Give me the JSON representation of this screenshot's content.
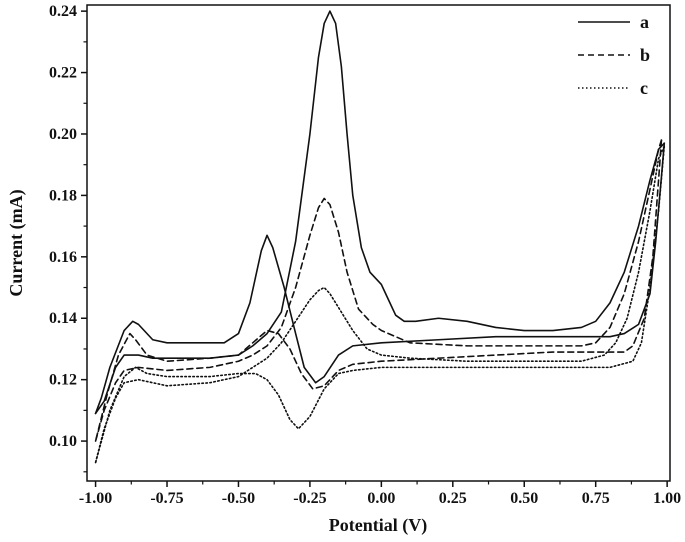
{
  "chart_data": {
    "type": "line",
    "title": "",
    "xlabel": "Potential (V)",
    "ylabel": "Current (mA)",
    "xlim": [
      -1.03,
      1.01
    ],
    "ylim": [
      0.087,
      0.242
    ],
    "x_ticks": [
      -1.0,
      -0.75,
      -0.5,
      -0.25,
      0.0,
      0.25,
      0.5,
      0.75,
      1.0
    ],
    "x_tick_labels": [
      "-1.00",
      "-0.75",
      "-0.50",
      "-0.25",
      "0.00",
      "0.25",
      "0.50",
      "0.75",
      "1.00"
    ],
    "y_ticks": [
      0.1,
      0.12,
      0.14,
      0.16,
      0.18,
      0.2,
      0.22,
      0.24
    ],
    "y_tick_labels": [
      "0.10",
      "0.12",
      "0.14",
      "0.16",
      "0.18",
      "0.20",
      "0.22",
      "0.24"
    ],
    "grid": false,
    "legend": "top-right",
    "series": [
      {
        "name": "a",
        "line_style": "solid",
        "color": "#111111",
        "forward": [
          [
            -1.0,
            0.109
          ],
          [
            -0.97,
            0.113
          ],
          [
            -0.93,
            0.124
          ],
          [
            -0.9,
            0.128
          ],
          [
            -0.85,
            0.128
          ],
          [
            -0.8,
            0.127
          ],
          [
            -0.7,
            0.127
          ],
          [
            -0.6,
            0.127
          ],
          [
            -0.5,
            0.128
          ],
          [
            -0.45,
            0.131
          ],
          [
            -0.4,
            0.135
          ],
          [
            -0.35,
            0.142
          ],
          [
            -0.3,
            0.165
          ],
          [
            -0.25,
            0.2
          ],
          [
            -0.22,
            0.225
          ],
          [
            -0.2,
            0.236
          ],
          [
            -0.18,
            0.24
          ],
          [
            -0.16,
            0.236
          ],
          [
            -0.14,
            0.222
          ],
          [
            -0.12,
            0.2
          ],
          [
            -0.1,
            0.18
          ],
          [
            -0.07,
            0.163
          ],
          [
            -0.04,
            0.155
          ],
          [
            0.0,
            0.151
          ],
          [
            0.02,
            0.147
          ],
          [
            0.05,
            0.141
          ],
          [
            0.08,
            0.139
          ],
          [
            0.12,
            0.139
          ],
          [
            0.2,
            0.14
          ],
          [
            0.3,
            0.139
          ],
          [
            0.4,
            0.137
          ],
          [
            0.5,
            0.136
          ],
          [
            0.6,
            0.136
          ],
          [
            0.7,
            0.137
          ],
          [
            0.75,
            0.139
          ],
          [
            0.8,
            0.145
          ],
          [
            0.85,
            0.155
          ],
          [
            0.9,
            0.17
          ],
          [
            0.94,
            0.185
          ],
          [
            0.97,
            0.195
          ],
          [
            0.99,
            0.197
          ]
        ],
        "reverse": [
          [
            0.99,
            0.197
          ],
          [
            0.98,
            0.186
          ],
          [
            0.96,
            0.165
          ],
          [
            0.94,
            0.148
          ],
          [
            0.9,
            0.138
          ],
          [
            0.85,
            0.135
          ],
          [
            0.8,
            0.134
          ],
          [
            0.6,
            0.134
          ],
          [
            0.4,
            0.134
          ],
          [
            0.2,
            0.133
          ],
          [
            0.0,
            0.132
          ],
          [
            -0.1,
            0.131
          ],
          [
            -0.15,
            0.128
          ],
          [
            -0.2,
            0.121
          ],
          [
            -0.23,
            0.119
          ],
          [
            -0.27,
            0.124
          ],
          [
            -0.3,
            0.135
          ],
          [
            -0.34,
            0.15
          ],
          [
            -0.38,
            0.163
          ],
          [
            -0.4,
            0.167
          ],
          [
            -0.42,
            0.162
          ],
          [
            -0.46,
            0.145
          ],
          [
            -0.5,
            0.135
          ],
          [
            -0.55,
            0.132
          ],
          [
            -0.65,
            0.132
          ],
          [
            -0.75,
            0.132
          ],
          [
            -0.8,
            0.133
          ],
          [
            -0.85,
            0.138
          ],
          [
            -0.87,
            0.139
          ],
          [
            -0.9,
            0.136
          ],
          [
            -0.95,
            0.124
          ],
          [
            -0.98,
            0.114
          ],
          [
            -1.0,
            0.109
          ]
        ]
      },
      {
        "name": "b",
        "line_style": "dashed",
        "color": "#111111",
        "forward": [
          [
            -1.0,
            0.1
          ],
          [
            -0.97,
            0.11
          ],
          [
            -0.93,
            0.119
          ],
          [
            -0.9,
            0.123
          ],
          [
            -0.85,
            0.124
          ],
          [
            -0.75,
            0.123
          ],
          [
            -0.6,
            0.124
          ],
          [
            -0.5,
            0.126
          ],
          [
            -0.45,
            0.128
          ],
          [
            -0.4,
            0.131
          ],
          [
            -0.35,
            0.137
          ],
          [
            -0.3,
            0.15
          ],
          [
            -0.25,
            0.167
          ],
          [
            -0.22,
            0.176
          ],
          [
            -0.2,
            0.179
          ],
          [
            -0.18,
            0.177
          ],
          [
            -0.15,
            0.168
          ],
          [
            -0.12,
            0.155
          ],
          [
            -0.08,
            0.143
          ],
          [
            -0.03,
            0.138
          ],
          [
            0.0,
            0.136
          ],
          [
            0.05,
            0.134
          ],
          [
            0.1,
            0.132
          ],
          [
            0.3,
            0.131
          ],
          [
            0.5,
            0.131
          ],
          [
            0.7,
            0.131
          ],
          [
            0.75,
            0.132
          ],
          [
            0.8,
            0.137
          ],
          [
            0.85,
            0.148
          ],
          [
            0.9,
            0.165
          ],
          [
            0.94,
            0.182
          ],
          [
            0.97,
            0.195
          ],
          [
            0.98,
            0.198
          ]
        ],
        "reverse": [
          [
            0.98,
            0.198
          ],
          [
            0.97,
            0.185
          ],
          [
            0.95,
            0.16
          ],
          [
            0.92,
            0.14
          ],
          [
            0.88,
            0.131
          ],
          [
            0.85,
            0.129
          ],
          [
            0.6,
            0.129
          ],
          [
            0.4,
            0.128
          ],
          [
            0.2,
            0.127
          ],
          [
            0.0,
            0.126
          ],
          [
            -0.1,
            0.125
          ],
          [
            -0.15,
            0.123
          ],
          [
            -0.2,
            0.118
          ],
          [
            -0.24,
            0.117
          ],
          [
            -0.28,
            0.122
          ],
          [
            -0.32,
            0.13
          ],
          [
            -0.36,
            0.135
          ],
          [
            -0.4,
            0.136
          ],
          [
            -0.45,
            0.132
          ],
          [
            -0.5,
            0.128
          ],
          [
            -0.6,
            0.127
          ],
          [
            -0.75,
            0.126
          ],
          [
            -0.82,
            0.128
          ],
          [
            -0.86,
            0.133
          ],
          [
            -0.88,
            0.135
          ],
          [
            -0.92,
            0.128
          ],
          [
            -0.96,
            0.115
          ],
          [
            -1.0,
            0.1
          ]
        ]
      },
      {
        "name": "c",
        "line_style": "dotted",
        "color": "#111111",
        "forward": [
          [
            -1.0,
            0.093
          ],
          [
            -0.97,
            0.104
          ],
          [
            -0.93,
            0.114
          ],
          [
            -0.9,
            0.119
          ],
          [
            -0.85,
            0.12
          ],
          [
            -0.75,
            0.118
          ],
          [
            -0.6,
            0.119
          ],
          [
            -0.5,
            0.121
          ],
          [
            -0.45,
            0.124
          ],
          [
            -0.4,
            0.127
          ],
          [
            -0.35,
            0.132
          ],
          [
            -0.3,
            0.139
          ],
          [
            -0.25,
            0.146
          ],
          [
            -0.22,
            0.149
          ],
          [
            -0.2,
            0.15
          ],
          [
            -0.18,
            0.148
          ],
          [
            -0.14,
            0.142
          ],
          [
            -0.1,
            0.136
          ],
          [
            -0.05,
            0.13
          ],
          [
            0.0,
            0.128
          ],
          [
            0.1,
            0.127
          ],
          [
            0.3,
            0.126
          ],
          [
            0.5,
            0.126
          ],
          [
            0.7,
            0.126
          ],
          [
            0.78,
            0.128
          ],
          [
            0.82,
            0.132
          ],
          [
            0.86,
            0.14
          ],
          [
            0.9,
            0.155
          ],
          [
            0.94,
            0.175
          ],
          [
            0.97,
            0.192
          ],
          [
            0.99,
            0.196
          ]
        ],
        "reverse": [
          [
            0.99,
            0.196
          ],
          [
            0.97,
            0.175
          ],
          [
            0.94,
            0.15
          ],
          [
            0.91,
            0.132
          ],
          [
            0.88,
            0.126
          ],
          [
            0.8,
            0.124
          ],
          [
            0.6,
            0.124
          ],
          [
            0.4,
            0.124
          ],
          [
            0.2,
            0.124
          ],
          [
            0.0,
            0.124
          ],
          [
            -0.1,
            0.123
          ],
          [
            -0.15,
            0.122
          ],
          [
            -0.2,
            0.117
          ],
          [
            -0.25,
            0.108
          ],
          [
            -0.29,
            0.104
          ],
          [
            -0.32,
            0.107
          ],
          [
            -0.36,
            0.115
          ],
          [
            -0.4,
            0.12
          ],
          [
            -0.44,
            0.122
          ],
          [
            -0.5,
            0.122
          ],
          [
            -0.6,
            0.121
          ],
          [
            -0.75,
            0.121
          ],
          [
            -0.82,
            0.122
          ],
          [
            -0.86,
            0.124
          ],
          [
            -0.9,
            0.121
          ],
          [
            -0.95,
            0.11
          ],
          [
            -1.0,
            0.093
          ]
        ]
      }
    ]
  }
}
